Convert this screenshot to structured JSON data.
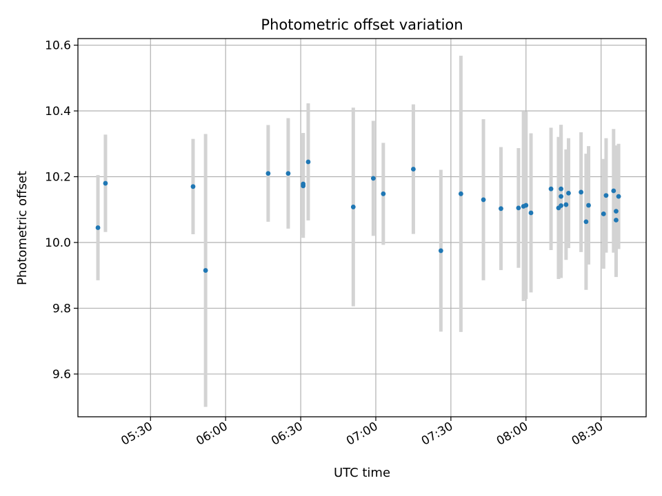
{
  "chart_data": {
    "type": "scatter",
    "title": "Photometric offset variation",
    "xlabel": "UTC time",
    "ylabel": "Photometric offset",
    "x_ticks": [
      "05:30",
      "06:00",
      "06:30",
      "07:00",
      "07:30",
      "08:00",
      "08:30"
    ],
    "y_ticks": [
      "9.6",
      "9.8",
      "10.0",
      "10.2",
      "10.4",
      "10.6"
    ],
    "xlim": [
      "05:01",
      "08:48"
    ],
    "ylim": [
      9.47,
      10.62
    ],
    "grid": true,
    "colors": {
      "points": "#1f77b4",
      "errorbars": "#d3d3d3",
      "grid": "#b0b0b0"
    },
    "points": [
      {
        "x": "05:09",
        "y": 10.045,
        "yerr": 0.16
      },
      {
        "x": "05:12",
        "y": 10.18,
        "yerr": 0.148
      },
      {
        "x": "05:47",
        "y": 10.17,
        "yerr": 0.145
      },
      {
        "x": "05:52",
        "y": 9.915,
        "yerr": 0.415
      },
      {
        "x": "06:17",
        "y": 10.21,
        "yerr": 0.147
      },
      {
        "x": "06:25",
        "y": 10.21,
        "yerr": 0.168
      },
      {
        "x": "06:31",
        "y": 10.172,
        "yerr": 0.158
      },
      {
        "x": "06:31",
        "y": 10.178,
        "yerr": 0.155
      },
      {
        "x": "06:33",
        "y": 10.245,
        "yerr": 0.178
      },
      {
        "x": "06:51",
        "y": 10.108,
        "yerr": 0.302
      },
      {
        "x": "06:59",
        "y": 10.195,
        "yerr": 0.175
      },
      {
        "x": "07:03",
        "y": 10.148,
        "yerr": 0.155
      },
      {
        "x": "07:15",
        "y": 10.223,
        "yerr": 0.197
      },
      {
        "x": "07:26",
        "y": 9.975,
        "yerr": 0.246
      },
      {
        "x": "07:34",
        "y": 10.148,
        "yerr": 0.42
      },
      {
        "x": "07:43",
        "y": 10.13,
        "yerr": 0.245
      },
      {
        "x": "07:50",
        "y": 10.103,
        "yerr": 0.187
      },
      {
        "x": "07:57",
        "y": 10.105,
        "yerr": 0.182
      },
      {
        "x": "07:59",
        "y": 10.11,
        "yerr": 0.288
      },
      {
        "x": "08:00",
        "y": 10.113,
        "yerr": 0.285
      },
      {
        "x": "08:02",
        "y": 10.09,
        "yerr": 0.242
      },
      {
        "x": "08:10",
        "y": 10.163,
        "yerr": 0.186
      },
      {
        "x": "08:13",
        "y": 10.105,
        "yerr": 0.216
      },
      {
        "x": "08:14",
        "y": 10.112,
        "yerr": 0.22
      },
      {
        "x": "08:14",
        "y": 10.14,
        "yerr": 0.217
      },
      {
        "x": "08:14",
        "y": 10.163,
        "yerr": 0.195
      },
      {
        "x": "08:16",
        "y": 10.115,
        "yerr": 0.168
      },
      {
        "x": "08:17",
        "y": 10.15,
        "yerr": 0.167
      },
      {
        "x": "08:22",
        "y": 10.153,
        "yerr": 0.182
      },
      {
        "x": "08:24",
        "y": 10.063,
        "yerr": 0.207
      },
      {
        "x": "08:25",
        "y": 10.113,
        "yerr": 0.18
      },
      {
        "x": "08:31",
        "y": 10.087,
        "yerr": 0.167
      },
      {
        "x": "08:32",
        "y": 10.143,
        "yerr": 0.174
      },
      {
        "x": "08:35",
        "y": 10.157,
        "yerr": 0.188
      },
      {
        "x": "08:36",
        "y": 10.095,
        "yerr": 0.2
      },
      {
        "x": "08:36",
        "y": 10.068,
        "yerr": 0.165
      },
      {
        "x": "08:37",
        "y": 10.14,
        "yerr": 0.16
      }
    ]
  }
}
